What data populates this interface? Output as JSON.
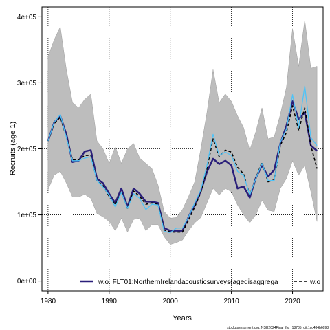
{
  "chart_data": {
    "type": "line",
    "xlabel": "Years",
    "ylabel": "Recruits (age 1)",
    "xlim": [
      1979,
      2025
    ],
    "ylim": [
      -15000,
      415000
    ],
    "x_ticks": [
      1980,
      1990,
      2000,
      2010,
      2020
    ],
    "y_ticks": [
      0,
      100000,
      200000,
      300000,
      400000
    ],
    "y_tick_labels": [
      "0e+00",
      "1e+05",
      "2e+05",
      "3e+05",
      "4e+05"
    ],
    "grid": true,
    "legend_position": "bottom",
    "years": [
      1980,
      1981,
      1982,
      1983,
      1984,
      1985,
      1986,
      1987,
      1988,
      1989,
      1990,
      1991,
      1992,
      1993,
      1994,
      1995,
      1996,
      1997,
      1998,
      1999,
      2000,
      2001,
      2002,
      2003,
      2004,
      2005,
      2006,
      2007,
      2008,
      2009,
      2010,
      2011,
      2012,
      2013,
      2014,
      2015,
      2016,
      2017,
      2018,
      2019,
      2020,
      2021,
      2022,
      2023,
      2024
    ],
    "band": {
      "upper": [
        340000,
        365000,
        385000,
        320000,
        270000,
        262000,
        275000,
        283000,
        212000,
        200000,
        178000,
        203000,
        178000,
        200000,
        208000,
        186000,
        178000,
        170000,
        145000,
        105000,
        95000,
        96000,
        108000,
        128000,
        150000,
        200000,
        255000,
        320000,
        270000,
        283000,
        272000,
        250000,
        232000,
        198000,
        226000,
        262000,
        215000,
        218000,
        252000,
        293000,
        382000,
        325000,
        395000,
        322000,
        325000
      ],
      "lower": [
        138000,
        160000,
        166000,
        148000,
        127000,
        127000,
        131000,
        125000,
        102000,
        97000,
        90000,
        76000,
        95000,
        74000,
        93000,
        95000,
        76000,
        85000,
        85000,
        67000,
        55000,
        58000,
        62000,
        76000,
        88000,
        96000,
        118000,
        140000,
        130000,
        140000,
        135000,
        115000,
        100000,
        88000,
        100000,
        122000,
        107000,
        105000,
        140000,
        155000,
        182000,
        160000,
        175000,
        135000,
        90000
      ]
    },
    "series": [
      {
        "name": "w.o. FLT01:NorthernIrelandacousticsurveys(agedisaggrega",
        "color": "#2a1f7a",
        "dash": "solid",
        "values": [
          212000,
          240000,
          250000,
          222000,
          180000,
          182000,
          196000,
          198000,
          155000,
          148000,
          132000,
          118000,
          140000,
          112000,
          140000,
          132000,
          120000,
          120000,
          118000,
          80000,
          76000,
          76000,
          76000,
          97000,
          116000,
          136000,
          165000,
          185000,
          177000,
          182000,
          175000,
          140000,
          143000,
          126000,
          156000,
          175000,
          158000,
          168000,
          208000,
          235000,
          272000,
          245000,
          255000,
          205000,
          197000
        ]
      },
      {
        "name": "w.o",
        "color": "#000000",
        "dash": "dashed",
        "values": [
          212000,
          238000,
          248000,
          218000,
          183000,
          183000,
          190000,
          190000,
          152000,
          144000,
          128000,
          115000,
          135000,
          110000,
          136000,
          128000,
          116000,
          118000,
          116000,
          77000,
          74000,
          74000,
          74000,
          92000,
          112000,
          134000,
          170000,
          215000,
          188000,
          198000,
          195000,
          172000,
          162000,
          130000,
          155000,
          180000,
          150000,
          153000,
          205000,
          225000,
          265000,
          228000,
          262000,
          205000,
          170000
        ]
      },
      {
        "name": "",
        "color": "#4fc3f7",
        "dash": "solid",
        "values": [
          212000,
          240000,
          252000,
          217000,
          182000,
          182000,
          186000,
          188000,
          152000,
          142000,
          130000,
          112000,
          134000,
          110000,
          132000,
          125000,
          108000,
          116000,
          115000,
          75000,
          73000,
          80000,
          80000,
          97000,
          118000,
          138000,
          175000,
          222000,
          190000,
          195000,
          190000,
          166000,
          160000,
          130000,
          155000,
          178000,
          152000,
          152000,
          210000,
          230000,
          282000,
          232000,
          295000,
          217000,
          205000
        ]
      }
    ]
  },
  "footer_text": "stockassessment.org, NSH2024Final_fix, r18785, git:1cc484b6098"
}
